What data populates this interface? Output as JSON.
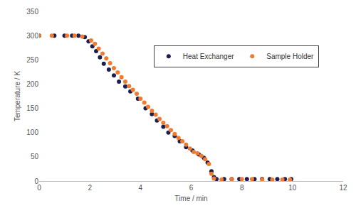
{
  "chart_data": {
    "type": "scatter",
    "x_label": "Time / min",
    "y_label": "Temperature / K",
    "xlim": [
      0,
      12
    ],
    "xticks": [
      0,
      2,
      4,
      6,
      8,
      10,
      12
    ],
    "ylim": [
      0,
      350
    ],
    "yticks": [
      0,
      50,
      100,
      150,
      200,
      250,
      300,
      350
    ],
    "grid": false,
    "legend": "upper right",
    "marker": "circle",
    "series": [
      {
        "name": "Heat Exchanger",
        "color": "#1b1f4f",
        "x": [
          0,
          0.6,
          1.0,
          1.3,
          1.55,
          1.8,
          1.95,
          2.1,
          2.25,
          2.4,
          2.55,
          2.75,
          2.95,
          3.15,
          3.4,
          3.6,
          3.9,
          4.2,
          4.45,
          4.65,
          4.9,
          5.1,
          5.35,
          5.55,
          5.8,
          6.05,
          6.3,
          6.5,
          6.65,
          6.8,
          6.9,
          7.0,
          7.3,
          7.6,
          7.9,
          8.2,
          8.5,
          8.8,
          9.1,
          9.4,
          9.7,
          9.95
        ],
        "values": [
          300,
          300,
          300,
          300,
          300,
          297,
          288,
          278,
          268,
          255,
          242,
          230,
          218,
          205,
          195,
          185,
          170,
          150,
          138,
          125,
          112,
          100,
          93,
          82,
          70,
          63,
          55,
          48,
          38,
          20,
          8,
          4,
          4,
          4,
          4,
          4,
          4,
          4,
          4,
          4,
          4,
          4
        ]
      },
      {
        "name": "Sample Holder",
        "color": "#ef7b2f",
        "x": [
          0,
          0.5,
          1.1,
          1.4,
          1.7,
          2.05,
          2.2,
          2.35,
          2.5,
          2.65,
          2.8,
          2.95,
          3.1,
          3.25,
          3.4,
          3.55,
          3.7,
          3.85,
          4.0,
          4.15,
          4.3,
          4.45,
          4.6,
          4.75,
          4.9,
          5.05,
          5.2,
          5.35,
          5.5,
          5.65,
          5.8,
          5.95,
          6.1,
          6.25,
          6.4,
          6.55,
          6.7,
          6.8,
          6.9,
          7.2,
          7.6,
          8.0,
          8.4,
          8.8,
          9.2,
          9.6,
          9.9
        ],
        "values": [
          300,
          300,
          300,
          300,
          298,
          290,
          283,
          273,
          263,
          253,
          243,
          233,
          224,
          214,
          205,
          196,
          188,
          180,
          170,
          162,
          153,
          145,
          137,
          128,
          120,
          113,
          105,
          97,
          89,
          82,
          75,
          67,
          60,
          57,
          52,
          45,
          35,
          15,
          5,
          3,
          4,
          4,
          4,
          3,
          3,
          3,
          3
        ]
      }
    ]
  }
}
